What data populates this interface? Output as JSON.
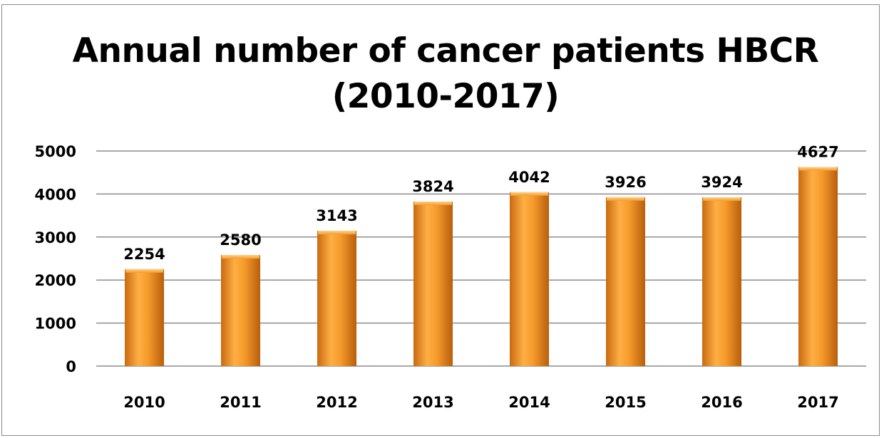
{
  "chart_data": {
    "type": "bar",
    "title": "Annual number of cancer patients HBCR",
    "subtitle": "(2010-2017)",
    "xlabel": "",
    "ylabel": "",
    "categories": [
      "2010",
      "2011",
      "2012",
      "2013",
      "2014",
      "2015",
      "2016",
      "2017"
    ],
    "values": [
      2254,
      2580,
      3143,
      3824,
      4042,
      3926,
      3924,
      4627
    ],
    "data_labels": [
      "2254",
      "2580",
      "3143",
      "3824",
      "4042",
      "3926",
      "3924",
      "4627"
    ],
    "ylim": [
      0,
      5000
    ],
    "yticks": [
      0,
      1000,
      2000,
      3000,
      4000,
      5000
    ],
    "ytick_labels": [
      "0",
      "1000",
      "2000",
      "3000",
      "4000",
      "5000"
    ],
    "grid": true,
    "legend": "none",
    "colors": {
      "bar_light": "#ffb347",
      "bar_mid": "#f39c2c",
      "bar_dark": "#c96a10",
      "grid": "#8c8c8c"
    }
  }
}
